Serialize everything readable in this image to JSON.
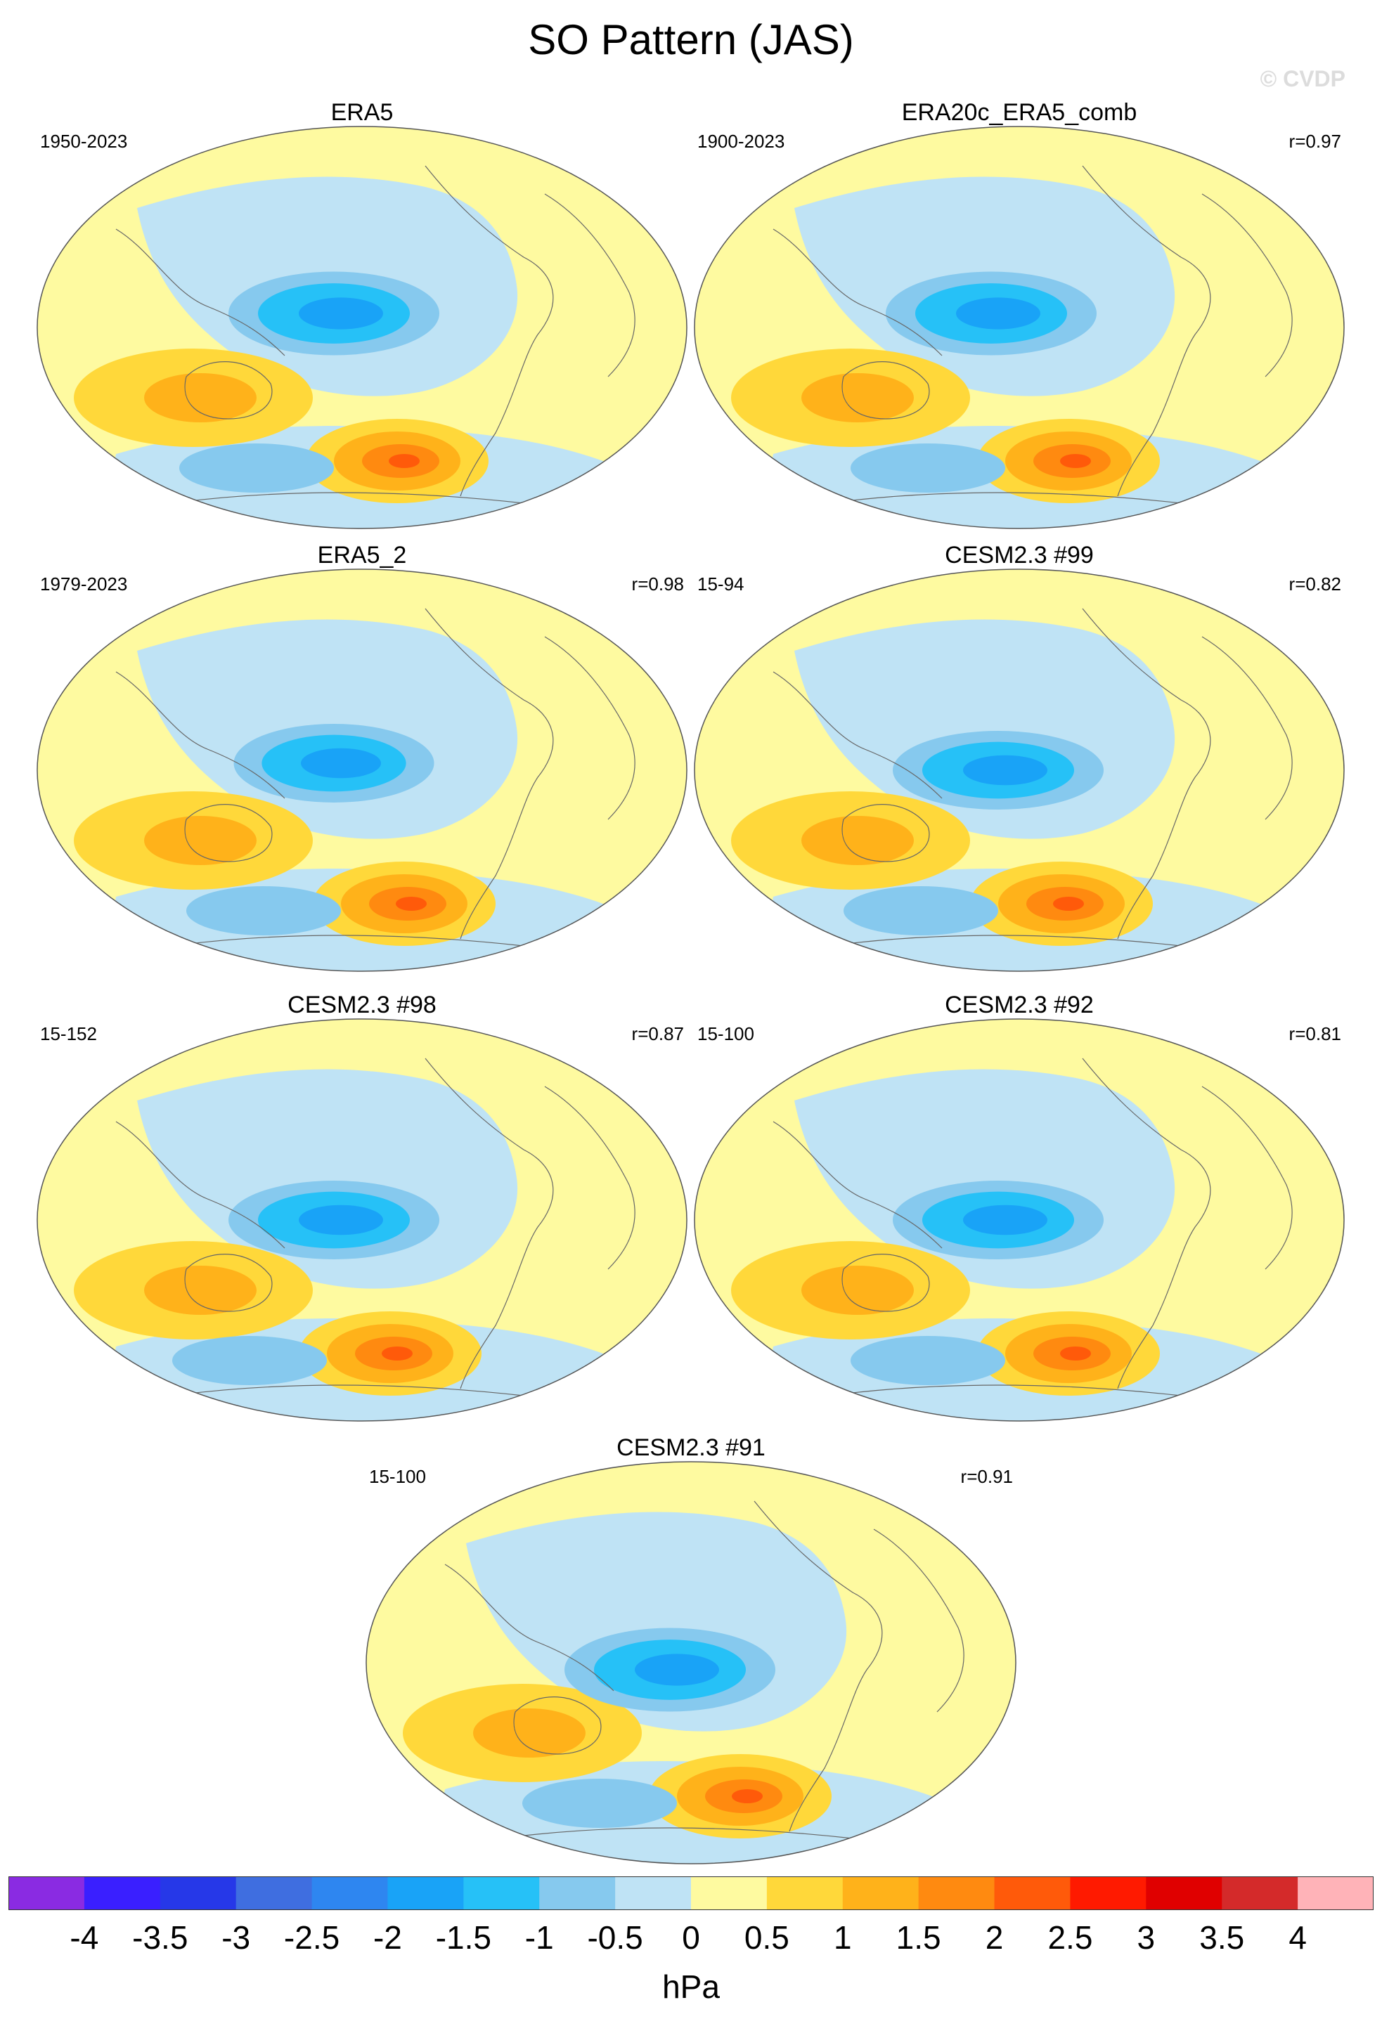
{
  "title": "SO Pattern (JAS)",
  "watermark": "© CVDP",
  "panels": [
    {
      "title": "ERA5",
      "period": "1950-2023",
      "r": ""
    },
    {
      "title": "ERA20c_ERA5_comb",
      "period": "1900-2023",
      "r": "r=0.97"
    },
    {
      "title": "ERA5_2",
      "period": "1979-2023",
      "r": "r=0.98"
    },
    {
      "title": "CESM2.3 #99",
      "period": "15-94",
      "r": "r=0.82"
    },
    {
      "title": "CESM2.3 #98",
      "period": "15-152",
      "r": "r=0.87"
    },
    {
      "title": "CESM2.3 #92",
      "period": "15-100",
      "r": "r=0.81"
    },
    {
      "title": "CESM2.3 #91",
      "period": "15-100",
      "r": "r=0.91"
    }
  ],
  "colorbar": {
    "colors": [
      "#8a2be2",
      "#3a1fff",
      "#2638e8",
      "#3f6ee0",
      "#2e86f0",
      "#19a3f7",
      "#26c1f7",
      "#86c9ee",
      "#bfe3f5",
      "#fefaa0",
      "#ffd83a",
      "#ffb21a",
      "#ff8a10",
      "#ff5a0a",
      "#ff1a00",
      "#e00000",
      "#d42a2a",
      "#ffb3b8"
    ],
    "labels": [
      "-4",
      "-3.5",
      "-3",
      "-2.5",
      "-2",
      "-1.5",
      "-1",
      "-0.5",
      "0",
      "0.5",
      "1",
      "1.5",
      "2",
      "2.5",
      "3",
      "3.5",
      "4"
    ],
    "units": "hPa"
  }
}
